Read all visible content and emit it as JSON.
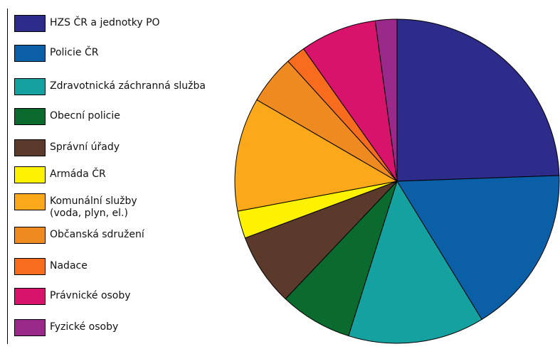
{
  "chart_data": {
    "type": "pie",
    "title": "",
    "legend_position": "left",
    "slices": [
      {
        "label": "HZS ČR a jednotky PO",
        "value": 25.0,
        "color": "#2e2c8a"
      },
      {
        "label": "Policie ČR",
        "value": 17.2,
        "color": "#0a5fa6"
      },
      {
        "label": "Zdravotnická záchranná služba",
        "value": 13.9,
        "color": "#14a1a0"
      },
      {
        "label": "Obecní policie",
        "value": 7.4,
        "color": "#0b6b2f"
      },
      {
        "label": "Správní úřady",
        "value": 7.4,
        "color": "#5b3a2b"
      },
      {
        "label": "Armáda ČR",
        "value": 2.8,
        "color": "#fff200"
      },
      {
        "label": "Komunální služby\n(voda, plyn, el.)",
        "value": 11.6,
        "color": "#fba91b"
      },
      {
        "label": "Občanská sdružení",
        "value": 5.0,
        "color": "#ef8a21"
      },
      {
        "label": "Nadace",
        "value": 2.0,
        "color": "#f76d1d"
      },
      {
        "label": "Právnické osoby",
        "value": 7.8,
        "color": "#d7136c"
      },
      {
        "label": "Fyzické osoby",
        "value": 2.2,
        "color": "#9a2a8a"
      }
    ]
  }
}
